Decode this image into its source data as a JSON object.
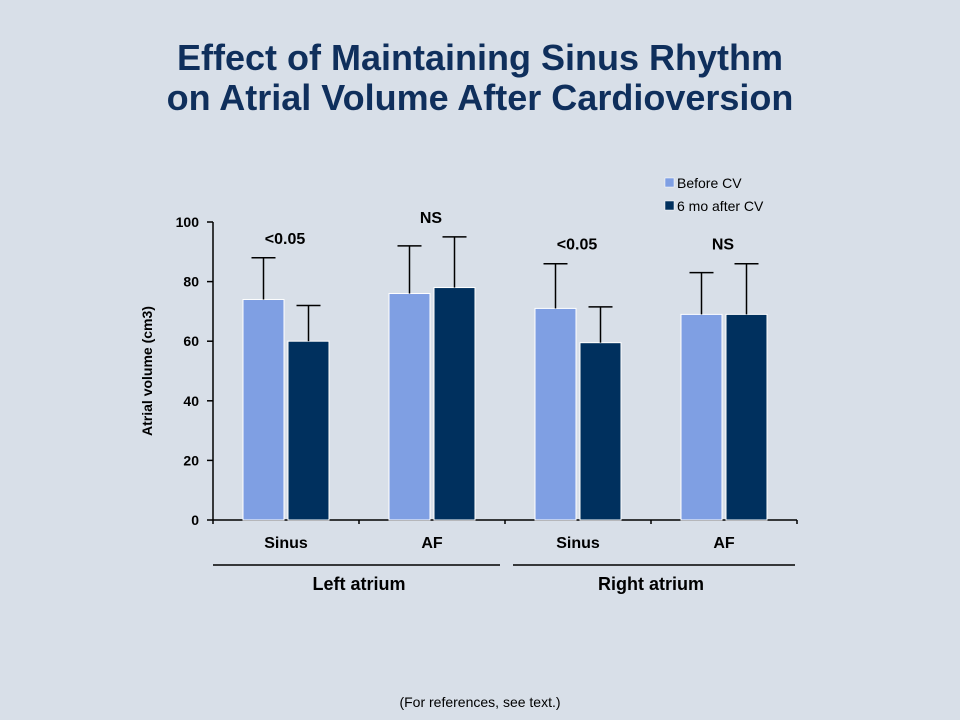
{
  "slide": {
    "title_line1": "Effect of Maintaining Sinus Rhythm",
    "title_line2": "on Atrial Volume After Cardioversion",
    "footnote": "(For references, see text.)"
  },
  "chart_data": {
    "type": "bar",
    "title": "",
    "ylabel": "Atrial volume (cm3)",
    "ylim": [
      0,
      100
    ],
    "yticks": [
      0,
      20,
      40,
      60,
      80,
      100
    ],
    "categories": [
      "Sinus",
      "AF",
      "Sinus",
      "AF"
    ],
    "groups": [
      {
        "label": "Left atrium",
        "categories": [
          0,
          1
        ]
      },
      {
        "label": "Right atrium",
        "categories": [
          2,
          3
        ]
      }
    ],
    "series": [
      {
        "name": "Before CV",
        "color": "#7f9fe3",
        "values": [
          74,
          76,
          71,
          69
        ],
        "error_upper": [
          88,
          92,
          86,
          83
        ]
      },
      {
        "name": "6 mo after CV",
        "color": "#00305e",
        "values": [
          60,
          78,
          59.5,
          69
        ],
        "error_upper": [
          72,
          95,
          71.5,
          86
        ]
      }
    ],
    "annotations": [
      "<0.05",
      "NS",
      "<0.05",
      "NS"
    ],
    "legend": "top-right",
    "grid": false
  }
}
